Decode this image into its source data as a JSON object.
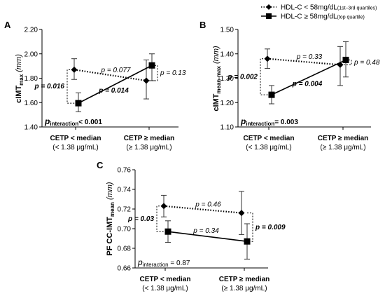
{
  "legend": {
    "items": [
      {
        "label": "HDL-C < 58mg/dL",
        "sub": "(1st–3rd quartiles)",
        "line": "dotted",
        "marker": "diamond"
      },
      {
        "label": "HDL-C ≥ 58mg/dL",
        "sub": "(top quartile)",
        "line": "solid",
        "marker": "square"
      }
    ]
  },
  "chart_data": [
    {
      "type": "line",
      "panel": "A",
      "ylabel_main": "cIMT",
      "ylabel_sub": "max",
      "ylabel_unit": "(mm)",
      "yticks": [
        "1.40",
        "1.60",
        "1.80",
        "2.00",
        "2.20"
      ],
      "ylim": [
        1.4,
        2.2
      ],
      "categories": [
        {
          "line1": "CETP < median",
          "line2": "(< 1.38 μg/mL)"
        },
        {
          "line1": "CETP ≥ median",
          "line2": "(≥ 1.38 μg/mL)"
        }
      ],
      "series": [
        {
          "name": "HDL-C < 58mg/dL",
          "style": "dotted",
          "marker": "diamond",
          "values": [
            1.87,
            1.78
          ],
          "err_high": [
            1.96,
            1.95
          ],
          "err_low": [
            1.79,
            1.63
          ]
        },
        {
          "name": "HDL-C ≥ 58mg/dL",
          "style": "solid",
          "marker": "square",
          "values": [
            1.595,
            1.905
          ],
          "err_high": [
            1.68,
            2.0
          ],
          "err_low": [
            1.525,
            1.78
          ]
        }
      ],
      "annotations": {
        "dotted_p": "p = 0.077",
        "solid_p": "p = 0.014",
        "left_bracket_p": "p = 0.016",
        "right_bracket_p": "p = 0.13",
        "interaction_p": "interaction",
        "interaction_val": "< 0.001"
      }
    },
    {
      "type": "line",
      "panel": "B",
      "ylabel_main": "cIMT",
      "ylabel_sub": "mean-max",
      "ylabel_unit": "(mm)",
      "yticks": [
        "1.10",
        "1.20",
        "1.30",
        "1.40",
        "1.50"
      ],
      "ylim": [
        1.1,
        1.5
      ],
      "categories": [
        {
          "line1": "CETP < median",
          "line2": "(< 1.38 μg/mL)"
        },
        {
          "line1": "CETP ≥ median",
          "line2": "(≥ 1.38 μg/mL)"
        }
      ],
      "series": [
        {
          "name": "HDL-C < 58mg/dL",
          "style": "dotted",
          "marker": "diamond",
          "values": [
            1.38,
            1.355
          ],
          "err_high": [
            1.42,
            1.43
          ],
          "err_low": [
            1.34,
            1.27
          ]
        },
        {
          "name": "HDL-C ≥ 58mg/dL",
          "style": "solid",
          "marker": "square",
          "values": [
            1.232,
            1.375
          ],
          "err_high": [
            1.27,
            1.45
          ],
          "err_low": [
            1.195,
            1.305
          ]
        }
      ],
      "annotations": {
        "dotted_p": "p = 0.33",
        "solid_p": "p = 0.004",
        "left_bracket_p": "p = 0.002",
        "right_bracket_p": "p = 0.48",
        "interaction_p": "interaction",
        "interaction_val": "= 0.003"
      }
    },
    {
      "type": "line",
      "panel": "C",
      "ylabel_main": "PF CC-IMT",
      "ylabel_sub": "mean",
      "ylabel_unit": "(mm)",
      "yticks": [
        "0.66",
        "0.68",
        "0.70",
        "0.72",
        "0.74",
        "0.76"
      ],
      "ylim": [
        0.66,
        0.76
      ],
      "categories": [
        {
          "line1": "CETP < median",
          "line2": "(< 1.38 μg/mL)"
        },
        {
          "line1": "CETP ≥ median",
          "line2": "(≥ 1.38 μg/mL)"
        }
      ],
      "series": [
        {
          "name": "HDL-C < 58mg/dL",
          "style": "dotted",
          "marker": "diamond",
          "values": [
            0.723,
            0.716
          ],
          "err_high": [
            0.734,
            0.738
          ],
          "err_low": [
            0.712,
            0.694
          ]
        },
        {
          "name": "HDL-C ≥ 58mg/dL",
          "style": "solid",
          "marker": "square",
          "values": [
            0.697,
            0.687
          ],
          "err_high": [
            0.708,
            0.705
          ],
          "err_low": [
            0.686,
            0.669
          ]
        }
      ],
      "annotations": {
        "dotted_p": "p = 0.46",
        "solid_p": "p = 0.34",
        "left_bracket_p": "p = 0.03",
        "right_bracket_p": "p = 0.009",
        "interaction_p": "interaction",
        "interaction_val": " = 0.87"
      }
    }
  ]
}
